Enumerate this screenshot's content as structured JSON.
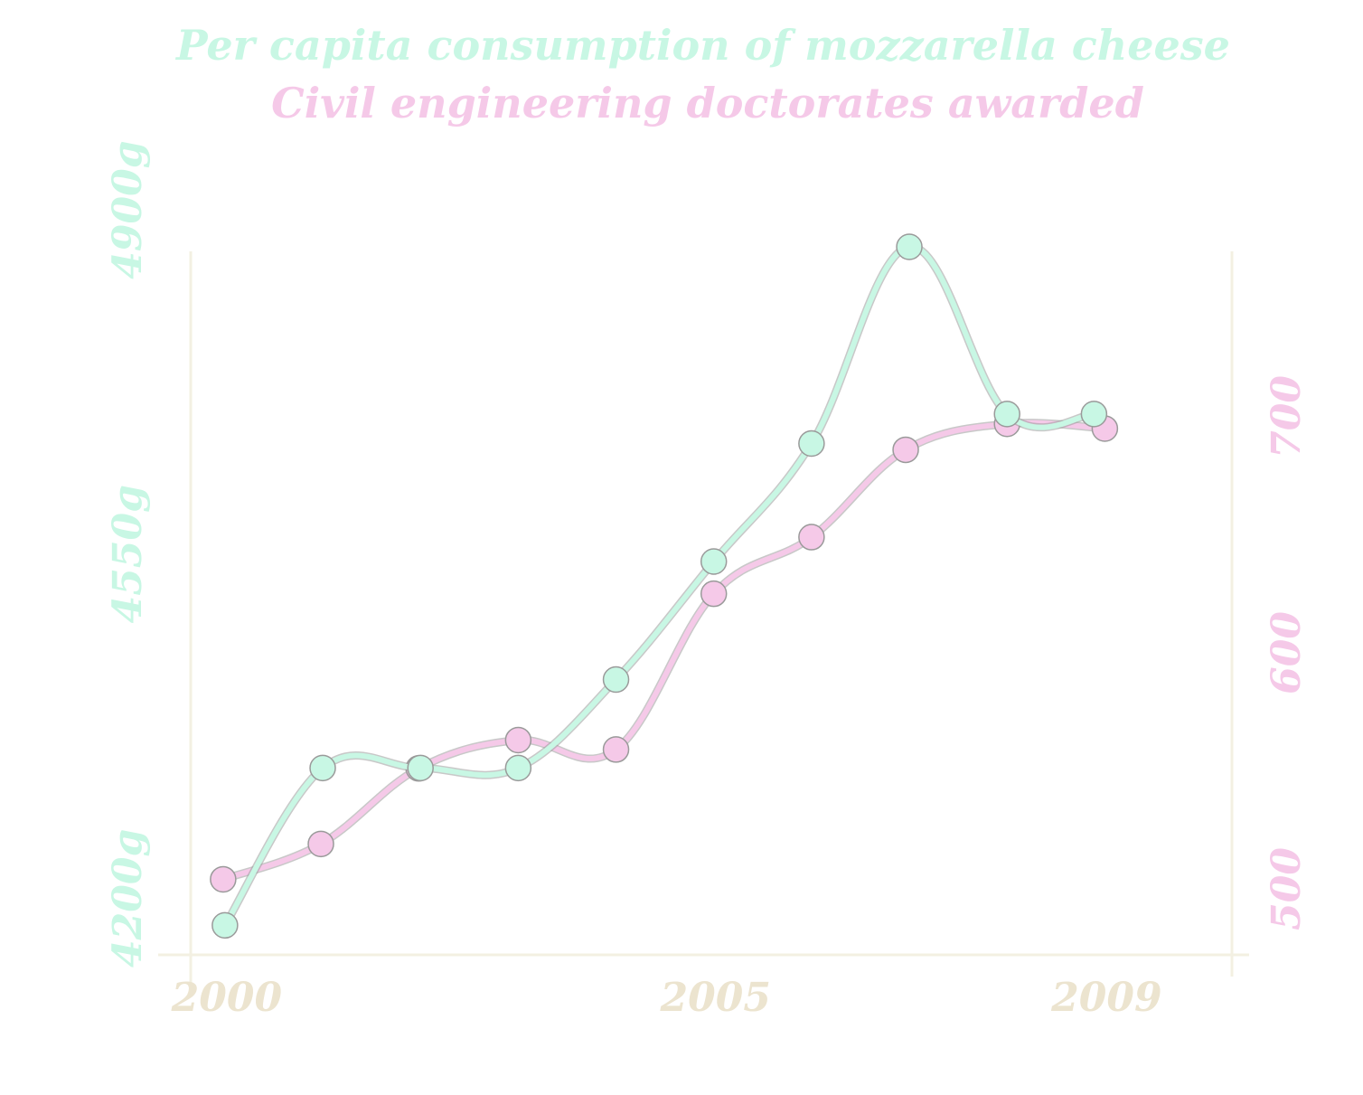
{
  "chart_data": {
    "type": "line",
    "title_lines": [
      "Per capita consumption of mozzarella cheese",
      "Civil engineering doctorates awarded"
    ],
    "x": [
      2000,
      2001,
      2002,
      2003,
      2004,
      2005,
      2006,
      2007,
      2008,
      2009
    ],
    "x_ticks": [
      "2000",
      "2005",
      "2009"
    ],
    "x_ticks_values": [
      2000,
      2005,
      2009
    ],
    "series": [
      {
        "name": "Per capita consumption of mozzarella cheese",
        "axis": "left",
        "values": [
          4230,
          4390,
          4390,
          4390,
          4480,
          4600,
          4720,
          4920,
          4750,
          4750
        ]
      },
      {
        "name": "Civil engineering doctorates awarded",
        "axis": "right",
        "values": [
          504,
          519,
          551,
          563,
          559,
          625,
          649,
          686,
          697,
          695
        ]
      }
    ],
    "y_left": {
      "ticks": [
        "4200g",
        "4550g",
        "4900g"
      ],
      "tick_values": [
        4200,
        4550,
        4900
      ],
      "range": [
        4200,
        4920
      ]
    },
    "y_right": {
      "ticks": [
        "500",
        "600",
        "700"
      ],
      "tick_values": [
        500,
        600,
        700
      ],
      "range": [
        472,
        772
      ]
    },
    "x_range": [
      1999.65,
      2010.3
    ],
    "grid": false,
    "legend": "none",
    "colors": {
      "series_left": "#c8f7e4",
      "series_right": "#f5c9e8",
      "axis": "#f3f0e2",
      "x_ticks": "#ece4cf",
      "marker_outline": "#9a9a9a"
    }
  }
}
